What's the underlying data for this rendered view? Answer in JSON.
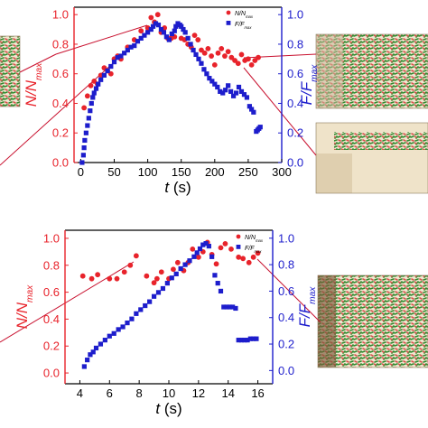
{
  "chart_data": [
    {
      "type": "scatter",
      "xlabel": "t (s)",
      "ylabel_left": "N/Nmax",
      "ylabel_right": "F/Fmax",
      "xlim": [
        -10,
        300
      ],
      "ylim_left": [
        0,
        1.05
      ],
      "ylim_right": [
        0,
        1.05
      ],
      "x_ticks": [
        "0",
        "50",
        "100",
        "150",
        "200",
        "250",
        "300"
      ],
      "y_ticks_left": [
        "0.0",
        "0.2",
        "0.4",
        "0.6",
        "0.8",
        "1.0"
      ],
      "y_ticks_right": [
        "0.0",
        "0.2",
        "0.4",
        "0.6",
        "0.8",
        "1.0"
      ],
      "legend_position": "top-right",
      "series": [
        {
          "name": "N/Nmax",
          "axis": "left",
          "color": "#e8232b",
          "marker": "circle",
          "points": [
            [
              5,
              0.37
            ],
            [
              10,
              0.45
            ],
            [
              15,
              0.52
            ],
            [
              20,
              0.55
            ],
            [
              25,
              0.53
            ],
            [
              30,
              0.59
            ],
            [
              35,
              0.64
            ],
            [
              40,
              0.62
            ],
            [
              45,
              0.6
            ],
            [
              50,
              0.7
            ],
            [
              55,
              0.72
            ],
            [
              60,
              0.7
            ],
            [
              70,
              0.78
            ],
            [
              80,
              0.83
            ],
            [
              90,
              0.89
            ],
            [
              100,
              0.91
            ],
            [
              105,
              0.98
            ],
            [
              110,
              0.95
            ],
            [
              115,
              1.0
            ],
            [
              120,
              0.88
            ],
            [
              125,
              0.91
            ],
            [
              130,
              0.84
            ],
            [
              135,
              0.84
            ],
            [
              140,
              0.85
            ],
            [
              150,
              0.84
            ],
            [
              155,
              0.83
            ],
            [
              160,
              0.8
            ],
            [
              165,
              0.78
            ],
            [
              170,
              0.86
            ],
            [
              175,
              0.83
            ],
            [
              180,
              0.76
            ],
            [
              185,
              0.74
            ],
            [
              190,
              0.77
            ],
            [
              195,
              0.72
            ],
            [
              200,
              0.66
            ],
            [
              205,
              0.74
            ],
            [
              210,
              0.77
            ],
            [
              215,
              0.72
            ],
            [
              220,
              0.75
            ],
            [
              225,
              0.71
            ],
            [
              230,
              0.69
            ],
            [
              235,
              0.67
            ],
            [
              240,
              0.73
            ],
            [
              245,
              0.69
            ],
            [
              250,
              0.7
            ],
            [
              255,
              0.66
            ],
            [
              260,
              0.69
            ],
            [
              265,
              0.71
            ]
          ]
        },
        {
          "name": "F/Fmax",
          "axis": "right",
          "color": "#1d1dcc",
          "marker": "square",
          "points": [
            [
              2,
              0.0
            ],
            [
              4,
              0.05
            ],
            [
              5,
              0.1
            ],
            [
              6,
              0.15
            ],
            [
              8,
              0.2
            ],
            [
              10,
              0.25
            ],
            [
              12,
              0.3
            ],
            [
              14,
              0.35
            ],
            [
              16,
              0.4
            ],
            [
              18,
              0.44
            ],
            [
              20,
              0.47
            ],
            [
              23,
              0.5
            ],
            [
              26,
              0.53
            ],
            [
              30,
              0.56
            ],
            [
              35,
              0.59
            ],
            [
              40,
              0.62
            ],
            [
              45,
              0.65
            ],
            [
              50,
              0.68
            ],
            [
              55,
              0.71
            ],
            [
              60,
              0.72
            ],
            [
              65,
              0.74
            ],
            [
              70,
              0.76
            ],
            [
              75,
              0.78
            ],
            [
              80,
              0.79
            ],
            [
              85,
              0.82
            ],
            [
              90,
              0.84
            ],
            [
              95,
              0.86
            ],
            [
              100,
              0.88
            ],
            [
              105,
              0.9
            ],
            [
              108,
              0.92
            ],
            [
              112,
              0.94
            ],
            [
              116,
              0.93
            ],
            [
              120,
              0.9
            ],
            [
              124,
              0.88
            ],
            [
              128,
              0.85
            ],
            [
              132,
              0.83
            ],
            [
              136,
              0.87
            ],
            [
              140,
              0.89
            ],
            [
              142,
              0.92
            ],
            [
              145,
              0.94
            ],
            [
              148,
              0.93
            ],
            [
              150,
              0.92
            ],
            [
              153,
              0.9
            ],
            [
              156,
              0.88
            ],
            [
              160,
              0.84
            ],
            [
              164,
              0.8
            ],
            [
              168,
              0.76
            ],
            [
              172,
              0.73
            ],
            [
              176,
              0.7
            ],
            [
              180,
              0.67
            ],
            [
              184,
              0.63
            ],
            [
              188,
              0.6
            ],
            [
              192,
              0.57
            ],
            [
              196,
              0.55
            ],
            [
              200,
              0.53
            ],
            [
              204,
              0.51
            ],
            [
              208,
              0.48
            ],
            [
              212,
              0.47
            ],
            [
              216,
              0.49
            ],
            [
              220,
              0.52
            ],
            [
              224,
              0.48
            ],
            [
              228,
              0.45
            ],
            [
              232,
              0.47
            ],
            [
              236,
              0.51
            ],
            [
              240,
              0.48
            ],
            [
              244,
              0.46
            ],
            [
              248,
              0.44
            ],
            [
              252,
              0.38
            ],
            [
              255,
              0.36
            ],
            [
              258,
              0.34
            ],
            [
              262,
              0.21
            ],
            [
              264,
              0.22
            ],
            [
              266,
              0.23
            ],
            [
              268,
              0.24
            ]
          ]
        }
      ]
    },
    {
      "type": "scatter",
      "xlabel": "t (s)",
      "ylabel_left": "N/Nmax",
      "ylabel_right": "F/Fmax",
      "xlim": [
        3,
        17
      ],
      "ylim_left": [
        -0.08,
        1.06
      ],
      "ylim_right": [
        -0.1,
        1.06
      ],
      "x_ticks": [
        "4",
        "6",
        "8",
        "10",
        "12",
        "14",
        "16"
      ],
      "y_ticks_left": [
        "0.0",
        "0.2",
        "0.4",
        "0.6",
        "0.8",
        "1.0"
      ],
      "y_ticks_right": [
        "0.0",
        "0.2",
        "0.4",
        "0.6",
        "0.8",
        "1.0"
      ],
      "legend_position": "top-right",
      "series": [
        {
          "name": "N/Nmax",
          "axis": "left",
          "color": "#e8232b",
          "marker": "circle",
          "points": [
            [
              4.2,
              0.72
            ],
            [
              4.8,
              0.7
            ],
            [
              5.2,
              0.73
            ],
            [
              6.0,
              0.7
            ],
            [
              6.5,
              0.7
            ],
            [
              7.0,
              0.75
            ],
            [
              7.4,
              0.8
            ],
            [
              7.8,
              0.87
            ],
            [
              8.5,
              0.72
            ],
            [
              9.0,
              0.67
            ],
            [
              9.2,
              0.7
            ],
            [
              9.5,
              0.75
            ],
            [
              10.0,
              0.7
            ],
            [
              10.3,
              0.77
            ],
            [
              10.6,
              0.82
            ],
            [
              11.0,
              0.76
            ],
            [
              11.3,
              0.82
            ],
            [
              11.6,
              0.92
            ],
            [
              12.0,
              0.86
            ],
            [
              12.3,
              0.9
            ],
            [
              12.6,
              0.97
            ],
            [
              12.9,
              0.88
            ],
            [
              13.2,
              0.81
            ],
            [
              13.5,
              0.93
            ],
            [
              13.8,
              0.96
            ],
            [
              14.2,
              0.92
            ],
            [
              14.7,
              0.86
            ],
            [
              15.0,
              0.85
            ],
            [
              15.4,
              0.82
            ],
            [
              15.7,
              0.86
            ],
            [
              16.0,
              0.89
            ]
          ]
        },
        {
          "name": "F/Fmax",
          "axis": "right",
          "color": "#1d1dcc",
          "marker": "square",
          "points": [
            [
              4.3,
              0.03
            ],
            [
              4.5,
              0.08
            ],
            [
              4.7,
              0.12
            ],
            [
              4.9,
              0.14
            ],
            [
              5.1,
              0.17
            ],
            [
              5.4,
              0.2
            ],
            [
              5.7,
              0.23
            ],
            [
              6.0,
              0.26
            ],
            [
              6.3,
              0.28
            ],
            [
              6.6,
              0.31
            ],
            [
              6.9,
              0.33
            ],
            [
              7.2,
              0.36
            ],
            [
              7.5,
              0.39
            ],
            [
              7.8,
              0.43
            ],
            [
              8.1,
              0.46
            ],
            [
              8.4,
              0.49
            ],
            [
              8.7,
              0.52
            ],
            [
              9.0,
              0.56
            ],
            [
              9.3,
              0.59
            ],
            [
              9.6,
              0.62
            ],
            [
              9.9,
              0.66
            ],
            [
              10.2,
              0.7
            ],
            [
              10.5,
              0.73
            ],
            [
              10.8,
              0.77
            ],
            [
              11.1,
              0.8
            ],
            [
              11.4,
              0.83
            ],
            [
              11.7,
              0.86
            ],
            [
              11.9,
              0.89
            ],
            [
              12.1,
              0.92
            ],
            [
              12.3,
              0.95
            ],
            [
              12.5,
              0.96
            ],
            [
              12.7,
              0.94
            ],
            [
              12.9,
              0.86
            ],
            [
              13.1,
              0.72
            ],
            [
              13.3,
              0.66
            ],
            [
              13.5,
              0.6
            ],
            [
              13.7,
              0.48
            ],
            [
              13.9,
              0.48
            ],
            [
              14.1,
              0.48
            ],
            [
              14.3,
              0.48
            ],
            [
              14.5,
              0.47
            ],
            [
              14.7,
              0.23
            ],
            [
              14.9,
              0.23
            ],
            [
              15.1,
              0.23
            ],
            [
              15.3,
              0.23
            ],
            [
              15.5,
              0.24
            ],
            [
              15.7,
              0.24
            ],
            [
              15.9,
              0.24
            ]
          ]
        }
      ]
    }
  ]
}
